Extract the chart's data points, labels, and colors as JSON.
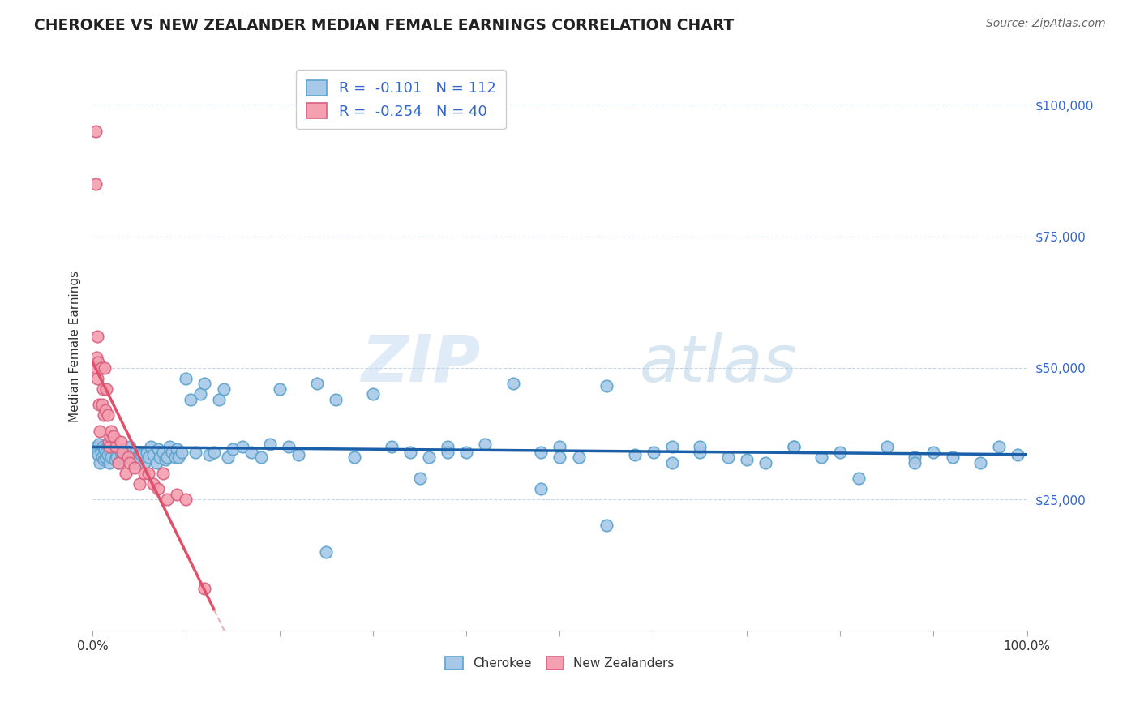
{
  "title": "CHEROKEE VS NEW ZEALANDER MEDIAN FEMALE EARNINGS CORRELATION CHART",
  "source_text": "Source: ZipAtlas.com",
  "ylabel": "Median Female Earnings",
  "watermark_zip": "ZIP",
  "watermark_atlas": "atlas",
  "x_min": 0.0,
  "x_max": 1.0,
  "y_min": 0,
  "y_max": 108000,
  "y_ticks": [
    25000,
    50000,
    75000,
    100000
  ],
  "y_tick_labels": [
    "$25,000",
    "$50,000",
    "$75,000",
    "$100,000"
  ],
  "x_ticks": [
    0.0,
    0.1,
    0.2,
    0.3,
    0.4,
    0.5,
    0.6,
    0.7,
    0.8,
    0.9,
    1.0
  ],
  "x_tick_labels": [
    "0.0%",
    "",
    "",
    "",
    "",
    "",
    "",
    "",
    "",
    "",
    "100.0%"
  ],
  "cherokee_color": "#a8c8e8",
  "cherokee_edge_color": "#5ba3cc",
  "nz_color": "#f4a0b0",
  "nz_edge_color": "#d96080",
  "trend_cherokee_color": "#1a5fa8",
  "trend_nz_solid_color": "#e0506a",
  "trend_nz_dashed_color": "#e8b0bc",
  "grid_color": "#c8d8e8",
  "background_color": "#ffffff",
  "legend_r_cherokee": "-0.101",
  "legend_n_cherokee": "112",
  "legend_r_nz": "-0.254",
  "legend_n_nz": "40",
  "cherokee_x": [
    0.004,
    0.005,
    0.006,
    0.007,
    0.008,
    0.009,
    0.01,
    0.011,
    0.012,
    0.013,
    0.014,
    0.015,
    0.016,
    0.017,
    0.018,
    0.019,
    0.02,
    0.022,
    0.024,
    0.025,
    0.026,
    0.028,
    0.03,
    0.032,
    0.034,
    0.036,
    0.038,
    0.04,
    0.042,
    0.044,
    0.046,
    0.048,
    0.05,
    0.052,
    0.055,
    0.058,
    0.06,
    0.062,
    0.065,
    0.068,
    0.07,
    0.072,
    0.075,
    0.078,
    0.08,
    0.082,
    0.085,
    0.088,
    0.09,
    0.092,
    0.095,
    0.1,
    0.105,
    0.11,
    0.115,
    0.12,
    0.125,
    0.13,
    0.135,
    0.14,
    0.145,
    0.15,
    0.16,
    0.17,
    0.18,
    0.19,
    0.2,
    0.21,
    0.22,
    0.24,
    0.26,
    0.28,
    0.3,
    0.32,
    0.34,
    0.36,
    0.38,
    0.4,
    0.42,
    0.45,
    0.48,
    0.5,
    0.52,
    0.55,
    0.58,
    0.6,
    0.62,
    0.65,
    0.68,
    0.7,
    0.75,
    0.78,
    0.8,
    0.85,
    0.88,
    0.9,
    0.92,
    0.95,
    0.97,
    0.99,
    0.38,
    0.5,
    0.62,
    0.75,
    0.88,
    0.25,
    0.35,
    0.48,
    0.55,
    0.65,
    0.72,
    0.82
  ],
  "cherokee_y": [
    35000,
    34000,
    33500,
    35500,
    32000,
    34000,
    33000,
    35000,
    32500,
    34500,
    33000,
    34000,
    33500,
    35000,
    32000,
    34000,
    33000,
    35000,
    32500,
    34000,
    33000,
    32000,
    34000,
    33000,
    34500,
    33000,
    34000,
    35000,
    33000,
    32000,
    34000,
    33000,
    34000,
    33500,
    32000,
    34000,
    33000,
    35000,
    33500,
    32000,
    34500,
    33000,
    34000,
    32500,
    33000,
    35000,
    34000,
    33000,
    34500,
    33000,
    34000,
    48000,
    44000,
    34000,
    45000,
    47000,
    33500,
    34000,
    44000,
    46000,
    33000,
    34500,
    35000,
    34000,
    33000,
    35500,
    46000,
    35000,
    33500,
    47000,
    44000,
    33000,
    45000,
    35000,
    34000,
    33000,
    35000,
    34000,
    35500,
    47000,
    34000,
    35000,
    33000,
    46500,
    33500,
    34000,
    35000,
    34000,
    33000,
    32500,
    35000,
    33000,
    34000,
    35000,
    33000,
    34000,
    33000,
    32000,
    35000,
    33500,
    34000,
    33000,
    32000,
    35000,
    32000,
    15000,
    29000,
    27000,
    20000,
    35000,
    32000,
    29000
  ],
  "nz_x": [
    0.003,
    0.003,
    0.004,
    0.004,
    0.005,
    0.005,
    0.006,
    0.007,
    0.008,
    0.009,
    0.01,
    0.011,
    0.012,
    0.013,
    0.014,
    0.015,
    0.016,
    0.017,
    0.018,
    0.019,
    0.02,
    0.022,
    0.025,
    0.028,
    0.03,
    0.032,
    0.035,
    0.038,
    0.04,
    0.045,
    0.05,
    0.055,
    0.06,
    0.065,
    0.07,
    0.075,
    0.08,
    0.09,
    0.1,
    0.12
  ],
  "nz_y": [
    95000,
    85000,
    52000,
    50000,
    56000,
    48000,
    51000,
    43000,
    38000,
    50000,
    43000,
    46000,
    41000,
    50000,
    42000,
    46000,
    41000,
    36000,
    35000,
    37000,
    38000,
    37000,
    35000,
    32000,
    36000,
    34000,
    30000,
    33000,
    32000,
    31000,
    28000,
    30000,
    30000,
    28000,
    27000,
    30000,
    25000,
    26000,
    25000,
    8000
  ]
}
